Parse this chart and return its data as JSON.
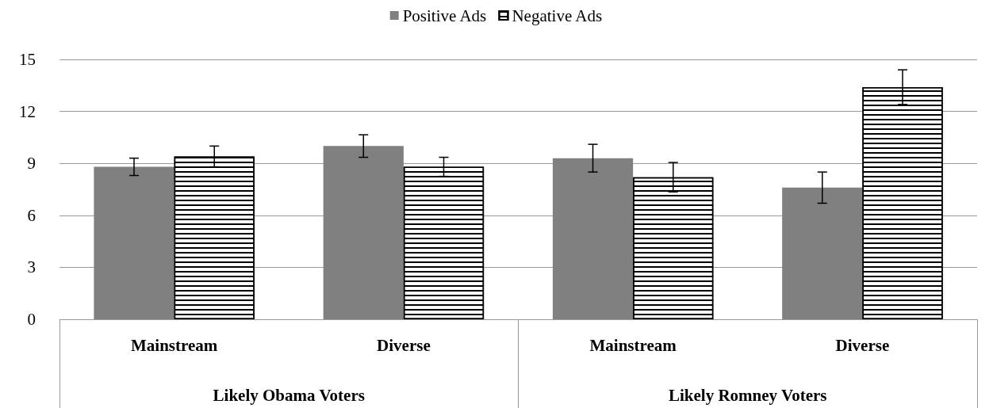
{
  "chart_data": {
    "type": "bar",
    "categories": [
      "Mainstream",
      "Diverse",
      "Mainstream",
      "Diverse"
    ],
    "annotations": [
      "Likely Obama Voters",
      "Likely Romney Voters"
    ],
    "series": [
      {
        "name": "Positive Ads",
        "color": "#808080",
        "values": [
          8.8,
          10.0,
          9.3,
          7.6
        ],
        "errors": [
          0.5,
          0.65,
          0.8,
          0.9
        ]
      },
      {
        "name": "Negative Ads",
        "color": "#ffffff",
        "values": [
          9.4,
          8.8,
          8.2,
          13.4
        ],
        "errors": [
          0.6,
          0.55,
          0.85,
          1.0
        ]
      }
    ],
    "ylim": [
      0,
      15
    ],
    "yticks": [
      0,
      3,
      6,
      9,
      12,
      15
    ],
    "grid": "y",
    "legend": "top"
  }
}
